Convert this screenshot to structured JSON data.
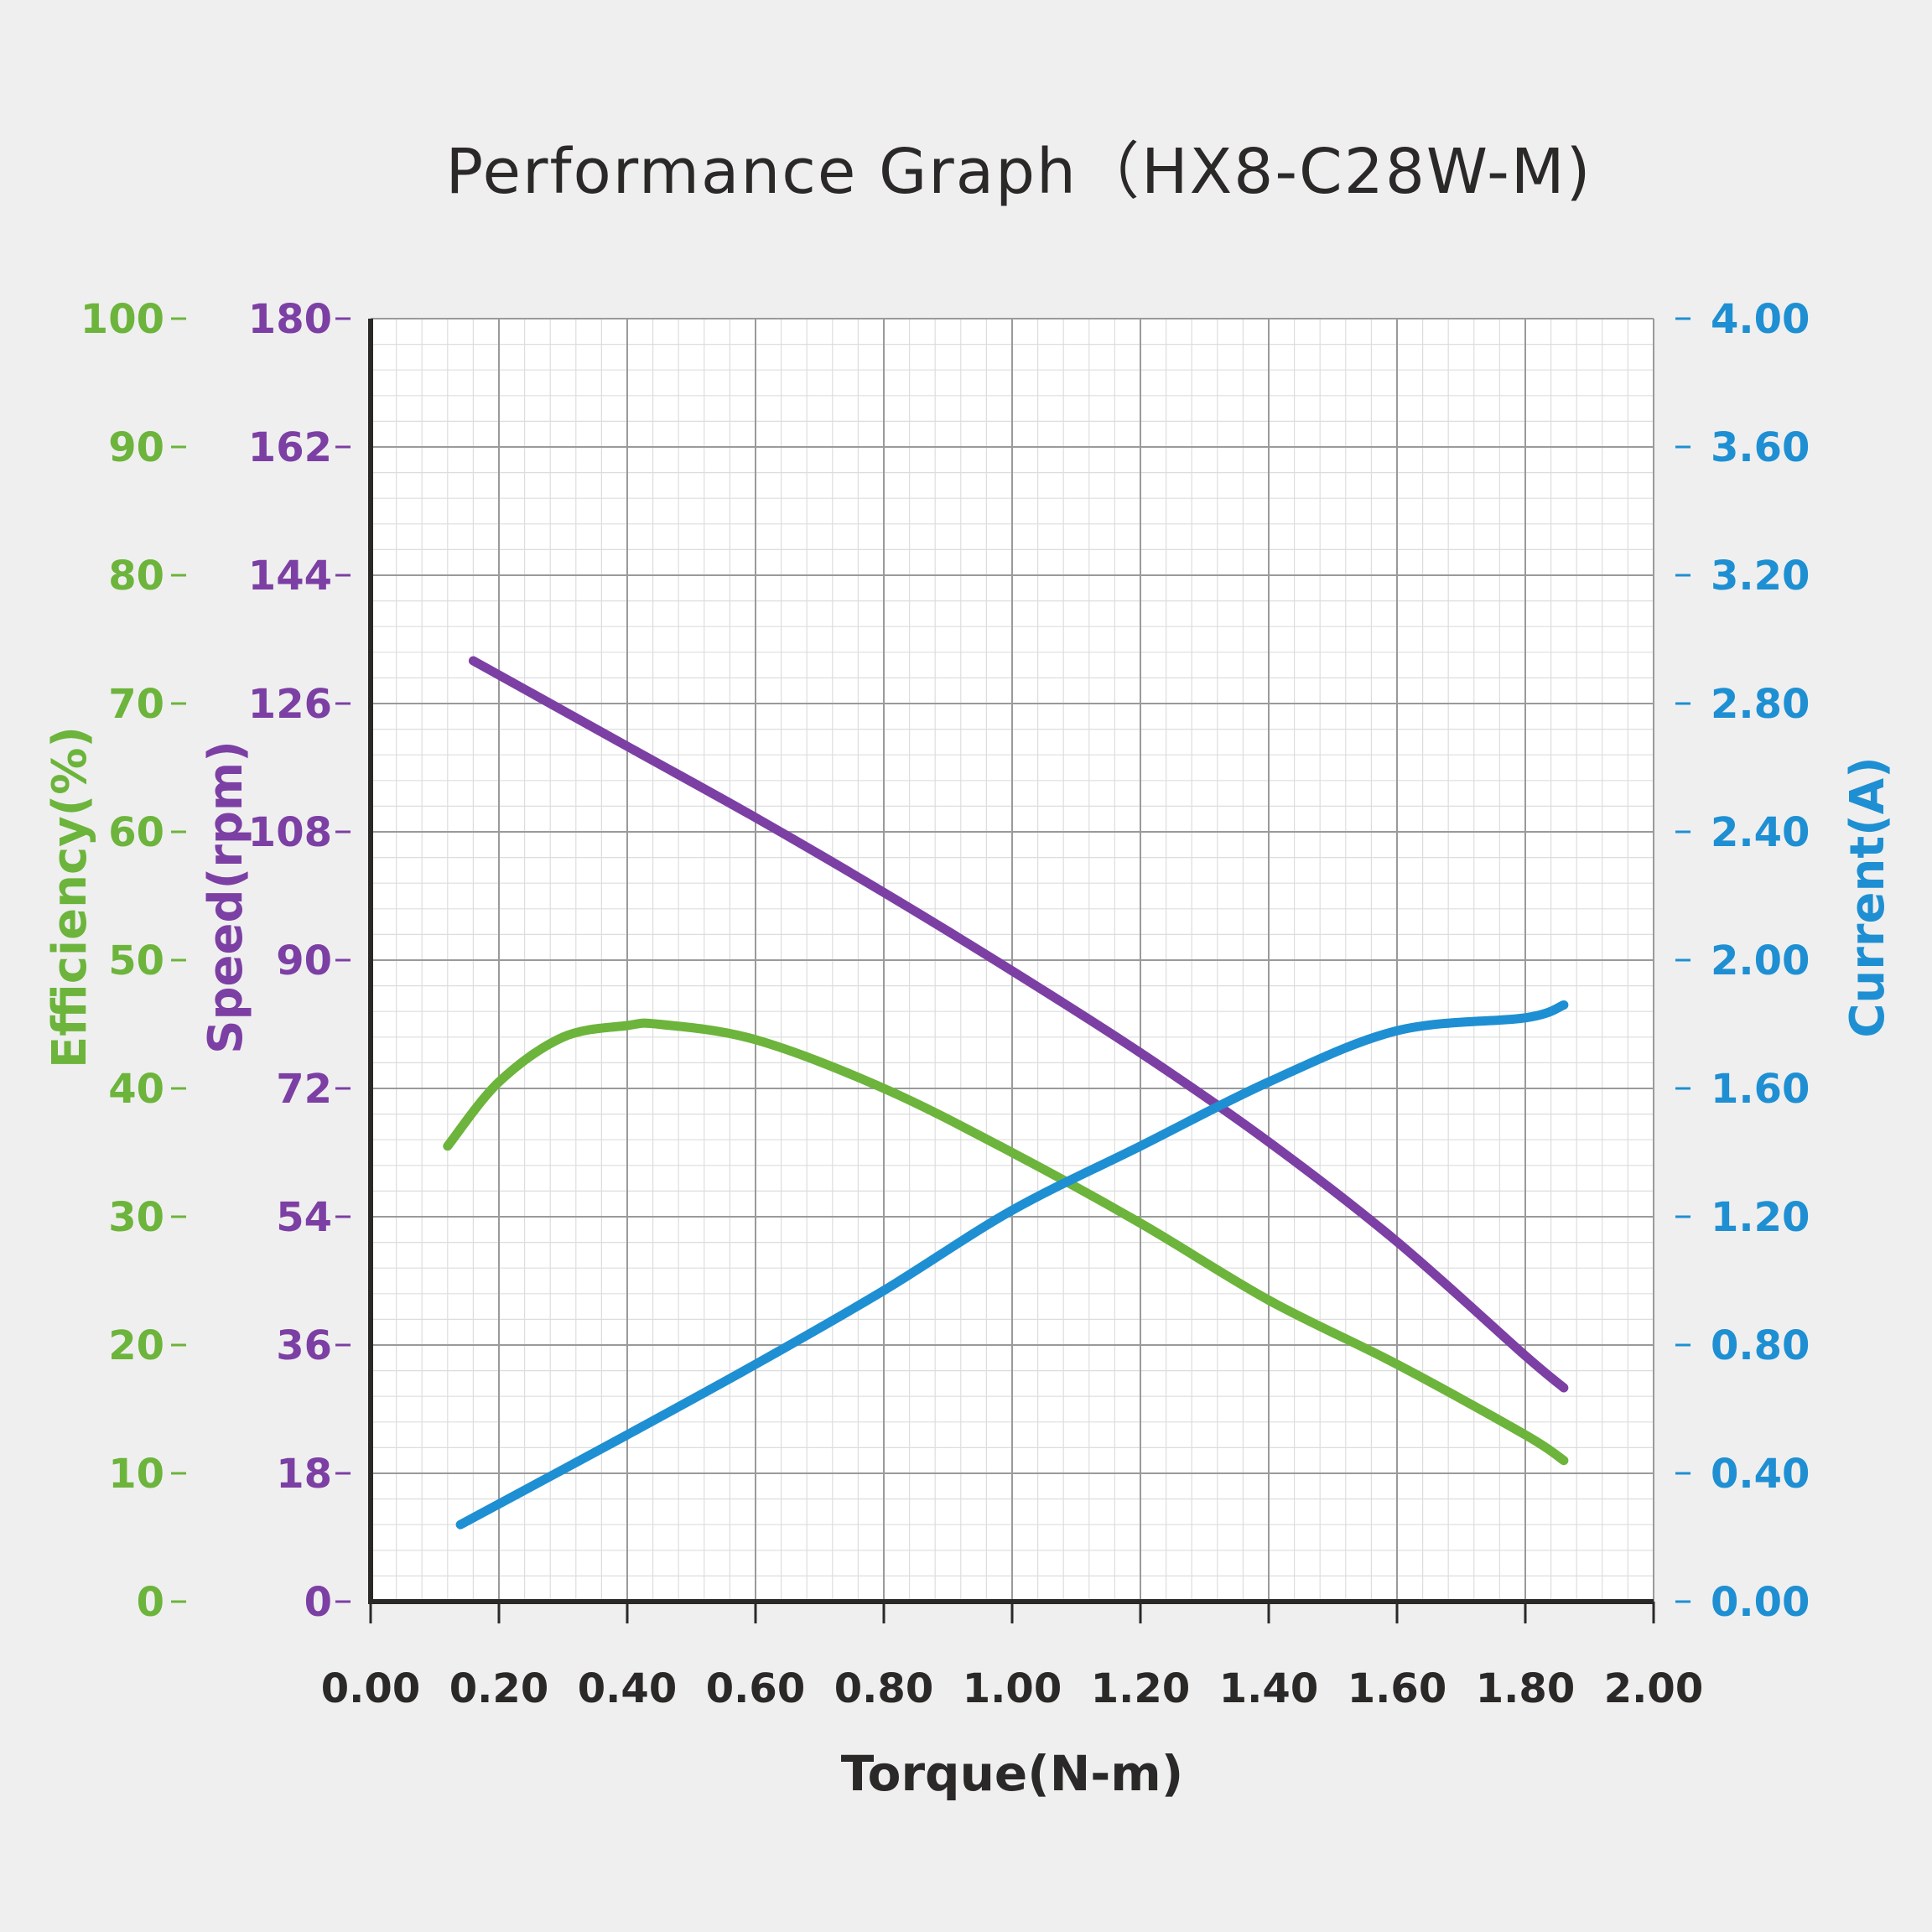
{
  "chart_data": {
    "type": "line",
    "title": "Performance Graph（HX8-C28W-M)",
    "xlabel": "Torque(N-m)",
    "xlim": [
      0,
      2.0
    ],
    "x_ticks": [
      "0.00",
      "0.20",
      "0.40",
      "0.60",
      "0.80",
      "1.00",
      "1.20",
      "1.40",
      "1.60",
      "1.80",
      "2.00"
    ],
    "grid": true,
    "y_axes": [
      {
        "id": "efficiency",
        "label": "Efficiency(%)",
        "side": "left-outer",
        "color": "#6cb43b",
        "ylim": [
          0,
          100
        ],
        "ticks": [
          "0",
          "10",
          "20",
          "30",
          "40",
          "50",
          "60",
          "70",
          "80",
          "90",
          "100"
        ]
      },
      {
        "id": "speed",
        "label": "Speed(rpm)",
        "side": "left-inner",
        "color": "#7c3fa4",
        "ylim": [
          0,
          180
        ],
        "ticks": [
          "0",
          "18",
          "36",
          "54",
          "72",
          "90",
          "108",
          "126",
          "144",
          "162",
          "180"
        ]
      },
      {
        "id": "current",
        "label": "Current(A)",
        "side": "right",
        "color": "#1e8fd2",
        "ylim": [
          0,
          4.0
        ],
        "ticks": [
          "0.00",
          "0.40",
          "0.80",
          "1.20",
          "1.60",
          "2.00",
          "2.40",
          "2.80",
          "3.20",
          "3.60",
          "4.00"
        ]
      }
    ],
    "series": [
      {
        "axis": "speed",
        "color": "#7c3fa4",
        "x": [
          0.16,
          0.4,
          0.6,
          0.8,
          1.0,
          1.2,
          1.4,
          1.6,
          1.8,
          1.86
        ],
        "y": [
          132,
          120,
          110,
          99.5,
          88.5,
          77,
          64.5,
          50.5,
          34.5,
          30
        ]
      },
      {
        "axis": "efficiency",
        "color": "#6cb43b",
        "x": [
          0.12,
          0.2,
          0.3,
          0.4,
          0.45,
          0.6,
          0.8,
          1.0,
          1.2,
          1.4,
          1.6,
          1.8,
          1.86
        ],
        "y": [
          35.5,
          40.5,
          44,
          44.9,
          45,
          43.8,
          40,
          35,
          29.5,
          23.5,
          18.5,
          13,
          11
        ]
      },
      {
        "axis": "current",
        "color": "#1e8fd2",
        "x": [
          0.14,
          0.4,
          0.6,
          0.8,
          1.0,
          1.2,
          1.4,
          1.6,
          1.8,
          1.86
        ],
        "y": [
          0.24,
          0.52,
          0.74,
          0.97,
          1.22,
          1.42,
          1.62,
          1.78,
          1.82,
          1.86
        ]
      }
    ]
  }
}
